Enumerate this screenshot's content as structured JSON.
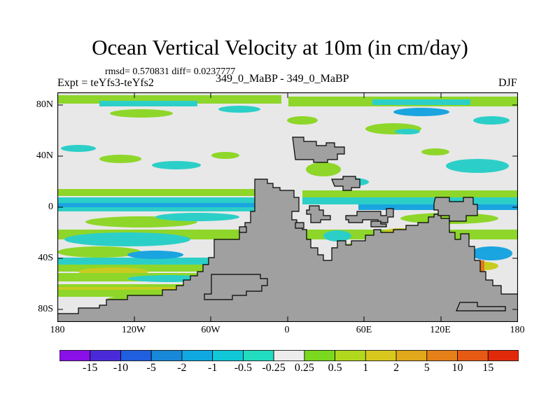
{
  "header": {
    "title": "Ocean Vertical Velocity at 10m (in cm/day)",
    "stats": "rmsd= 0.570831 diff= 0.0237777",
    "experiment": "Expt = teYfs3-teYfs2",
    "case": "349_0_MaBP - 349_0_MaBP",
    "season": "DJF"
  },
  "axes": {
    "lat_labels": [
      "80N",
      "40N",
      "0",
      "40S",
      "80S"
    ],
    "lon_labels": [
      "180",
      "120W",
      "60W",
      "0",
      "60E",
      "120E",
      "180"
    ]
  },
  "colorbar": {
    "labels": [
      "-15",
      "-10",
      "-5",
      "-2",
      "-1",
      "-0.5",
      "-0.25",
      "0.25",
      "0.5",
      "1",
      "2",
      "5",
      "10",
      "15"
    ],
    "colors": [
      "#8a10e8",
      "#4a2ad8",
      "#1f5fe0",
      "#1888d8",
      "#10a8e0",
      "#10c8d8",
      "#22dcc0",
      "#ececec",
      "#7ad81e",
      "#b2d81e",
      "#d8c81e",
      "#e0a81a",
      "#e68018",
      "#e65a14",
      "#e02a0a"
    ]
  },
  "colors": {
    "land": "#a0a0a0",
    "ocean_neutral": "#e8e8e8",
    "green": "#8ed62a",
    "cyan": "#2ccfc8",
    "blue": "#1aa4e0",
    "yellow": "#c8cc20",
    "orange": "#e07a18"
  }
}
